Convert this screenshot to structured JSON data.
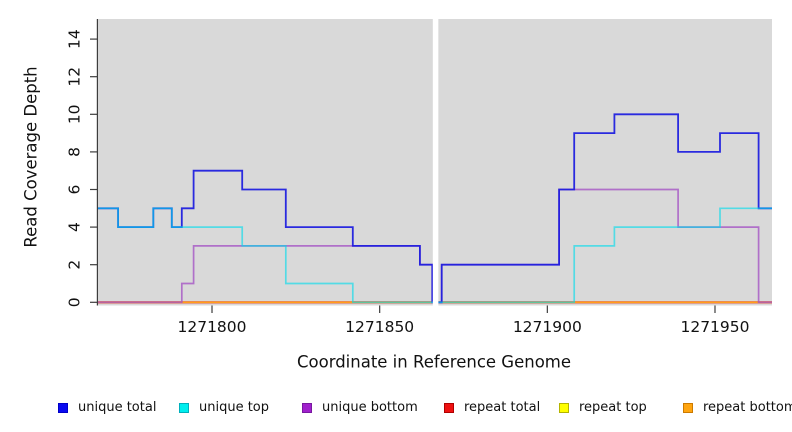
{
  "figure": {
    "background": "#ffffff",
    "panel_background": "#d9d9d9",
    "axis_color": "#3d3d3d",
    "text_color": "#111111"
  },
  "chart_data": {
    "type": "line",
    "subtype": "step-coverage-plot",
    "title": "",
    "xlabel": "Coordinate in Reference Genome",
    "ylabel": "Read Coverage Depth",
    "xlim": [
      1271766,
      1271967
    ],
    "ylim": [
      0,
      15.1
    ],
    "xticks": [
      1271800,
      1271850,
      1271900,
      1271950
    ],
    "yticks": [
      0,
      2,
      4,
      6,
      8,
      10,
      12,
      14
    ],
    "grid": false,
    "legend_position": "bottom",
    "no_data_gap": [
      1271865.85,
      1271867.5
    ],
    "draw_order": [
      3,
      4,
      5,
      2,
      0,
      1
    ],
    "series": [
      {
        "name": "unique total",
        "color": "#1c1cdf",
        "opacity": 0.93,
        "width": 1.8,
        "xend": 1271967,
        "steps": [
          [
            1271766,
            5
          ],
          [
            1271772,
            4
          ],
          [
            1271782.5,
            5
          ],
          [
            1271788,
            4
          ],
          [
            1271791,
            5
          ],
          [
            1271794.5,
            7
          ],
          [
            1271809,
            6
          ],
          [
            1271822,
            4
          ],
          [
            1271842,
            3
          ],
          [
            1271862,
            2
          ],
          [
            1271865.7,
            0
          ],
          [
            1271868.5,
            2
          ],
          [
            1271903.5,
            6
          ],
          [
            1271908,
            9
          ],
          [
            1271920,
            10
          ],
          [
            1271939,
            8
          ],
          [
            1271951.5,
            9
          ],
          [
            1271963,
            5
          ]
        ]
      },
      {
        "name": "unique top",
        "color": "#00dcec",
        "opacity": 0.62,
        "width": 1.7,
        "xend": 1271967,
        "steps": [
          [
            1271766,
            5
          ],
          [
            1271772,
            4
          ],
          [
            1271782.5,
            5
          ],
          [
            1271788,
            4
          ],
          [
            1271809,
            3
          ],
          [
            1271822,
            1
          ],
          [
            1271842,
            0
          ],
          [
            1271908,
            3
          ],
          [
            1271920,
            4
          ],
          [
            1271951.5,
            5
          ]
        ]
      },
      {
        "name": "unique bottom",
        "color": "#a452c4",
        "opacity": 0.78,
        "width": 1.7,
        "xend": 1271967,
        "steps": [
          [
            1271766,
            0
          ],
          [
            1271791,
            1
          ],
          [
            1271794.5,
            3
          ],
          [
            1271862,
            2
          ],
          [
            1271865.7,
            0
          ],
          [
            1271868.5,
            2
          ],
          [
            1271903.5,
            6
          ],
          [
            1271939,
            4
          ],
          [
            1271963,
            0
          ]
        ]
      },
      {
        "name": "repeat total",
        "color": "#e02020",
        "opacity": 1,
        "width": 2.1,
        "xend": 1271967,
        "steps": [
          [
            1271766,
            0
          ]
        ]
      },
      {
        "name": "repeat top",
        "color": "#ffff00",
        "opacity": 1,
        "width": 1.4,
        "xend": 1271967,
        "steps": [
          [
            1271766,
            0
          ]
        ]
      },
      {
        "name": "repeat bottom",
        "color": "#ff9e1b",
        "opacity": 1,
        "width": 1.7,
        "xend": 1271967,
        "steps": [
          [
            1271766,
            0
          ]
        ]
      }
    ],
    "legend": [
      {
        "label": "unique total",
        "fill": "#0a0af0",
        "border": "#0000c8"
      },
      {
        "label": "unique top",
        "fill": "#00eeee",
        "border": "#00b0bc"
      },
      {
        "label": "unique bottom",
        "fill": "#a020cc",
        "border": "#7818a0"
      },
      {
        "label": "repeat total",
        "fill": "#ee1111",
        "border": "#b00000"
      },
      {
        "label": "repeat top",
        "fill": "#ffff00",
        "border": "#b4b400"
      },
      {
        "label": "repeat bottom",
        "fill": "#ffa510",
        "border": "#cc7a00"
      }
    ]
  }
}
